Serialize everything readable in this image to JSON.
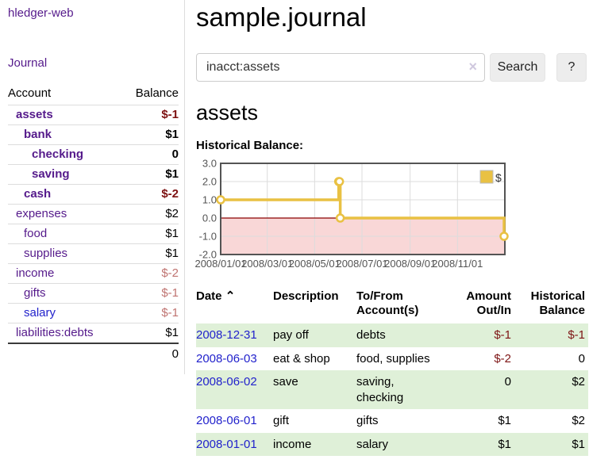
{
  "app": {
    "brand": "hledger-web",
    "nav_journal": "Journal"
  },
  "header": {
    "title": "sample.journal"
  },
  "search": {
    "value": "inacct:assets",
    "clear_icon": "×",
    "button": "Search",
    "help_button": "?"
  },
  "sidebar": {
    "accounts_header": {
      "account": "Account",
      "balance": "Balance"
    },
    "accounts": [
      {
        "name": "assets",
        "balance": "$-1",
        "depth": 1,
        "bold": true,
        "negative": true,
        "blue": false
      },
      {
        "name": "bank",
        "balance": "$1",
        "depth": 2,
        "bold": true,
        "negative": false,
        "blue": false
      },
      {
        "name": "checking",
        "balance": "0",
        "depth": 3,
        "bold": true,
        "negative": false,
        "blue": false
      },
      {
        "name": "saving",
        "balance": "$1",
        "depth": 3,
        "bold": true,
        "negative": false,
        "blue": false
      },
      {
        "name": "cash",
        "balance": "$-2",
        "depth": 2,
        "bold": true,
        "negative": true,
        "blue": false
      },
      {
        "name": "expenses",
        "balance": "$2",
        "depth": 1,
        "bold": false,
        "negative": false,
        "blue": false
      },
      {
        "name": "food",
        "balance": "$1",
        "depth": 2,
        "bold": false,
        "negative": false,
        "blue": false
      },
      {
        "name": "supplies",
        "balance": "$1",
        "depth": 2,
        "bold": false,
        "negative": false,
        "blue": false
      },
      {
        "name": "income",
        "balance": "$-2",
        "depth": 1,
        "bold": false,
        "negative": true,
        "blue": false
      },
      {
        "name": "gifts",
        "balance": "$-1",
        "depth": 2,
        "bold": false,
        "negative": true,
        "blue": false
      },
      {
        "name": "salary",
        "balance": "$-1",
        "depth": 2,
        "bold": false,
        "negative": true,
        "blue": true
      },
      {
        "name": "liabilities:debts",
        "balance": "$1",
        "depth": 1,
        "bold": false,
        "negative": false,
        "blue": false
      }
    ],
    "total": "0"
  },
  "account_page": {
    "title": "assets",
    "chart_title": "Historical Balance:"
  },
  "chart_data": {
    "type": "line",
    "step": true,
    "title": "Historical Balance",
    "legend": "$",
    "legend_position": "top-right",
    "x_range": [
      "2008-01-01",
      "2008-12-31"
    ],
    "ylim": [
      -2,
      3
    ],
    "points": [
      [
        "2008-01-01",
        1
      ],
      [
        "2008-06-01",
        2
      ],
      [
        "2008-06-02",
        2
      ],
      [
        "2008-06-03",
        0
      ],
      [
        "2008-12-31",
        -1
      ]
    ],
    "xticks": [
      {
        "date": "2008-01-01",
        "label": "2008/01/01"
      },
      {
        "date": "2008-03-01",
        "label": "2008/03/01"
      },
      {
        "date": "2008-05-01",
        "label": "2008/05/01"
      },
      {
        "date": "2008-07-01",
        "label": "2008/07/01"
      },
      {
        "date": "2008-09-01",
        "label": "2008/09/01"
      },
      {
        "date": "2008-11-01",
        "label": "2008/11/01"
      }
    ],
    "yticks": [
      3,
      2,
      1,
      0,
      -1,
      -2
    ],
    "grid": true,
    "colors": {
      "line": "#e9c143",
      "marker_fill": "#ffffff",
      "negative_fill": "#f9d7d7",
      "zero_line": "#8b0000",
      "grid": "#dcdcdc",
      "border": "#545454",
      "tick_text": "#545454"
    }
  },
  "register": {
    "sort_icon": "⌃",
    "columns": [
      {
        "key": "date",
        "label": "Date",
        "align": "left",
        "sorted": true,
        "sortable": true
      },
      {
        "key": "description",
        "label": "Description",
        "align": "left",
        "sorted": false,
        "sortable": false
      },
      {
        "key": "accounts",
        "label": "To/From\nAccount(s)",
        "align": "left",
        "sorted": false,
        "sortable": false
      },
      {
        "key": "amount",
        "label": "Amount\nOut/In",
        "align": "right",
        "sorted": false,
        "sortable": false
      },
      {
        "key": "balance",
        "label": "Historical\nBalance",
        "align": "right",
        "sorted": false,
        "sortable": false
      }
    ],
    "rows": [
      {
        "date": "2008-12-31",
        "description": "pay off",
        "accounts": "debts",
        "amount": "$-1",
        "amount_negative": true,
        "balance": "$-1",
        "balance_negative": true,
        "highlight": true
      },
      {
        "date": "2008-06-03",
        "description": "eat & shop",
        "accounts": "food, supplies",
        "amount": "$-2",
        "amount_negative": true,
        "balance": "0",
        "balance_negative": false,
        "highlight": false
      },
      {
        "date": "2008-06-02",
        "description": "save",
        "accounts": "saving,\nchecking",
        "amount": "0",
        "amount_negative": false,
        "balance": "$2",
        "balance_negative": false,
        "highlight": true
      },
      {
        "date": "2008-06-01",
        "description": "gift",
        "accounts": "gifts",
        "amount": "$1",
        "amount_negative": false,
        "balance": "$2",
        "balance_negative": false,
        "highlight": false
      },
      {
        "date": "2008-01-01",
        "description": "income",
        "accounts": "salary",
        "amount": "$1",
        "amount_negative": false,
        "balance": "$1",
        "balance_negative": false,
        "highlight": true
      }
    ]
  }
}
